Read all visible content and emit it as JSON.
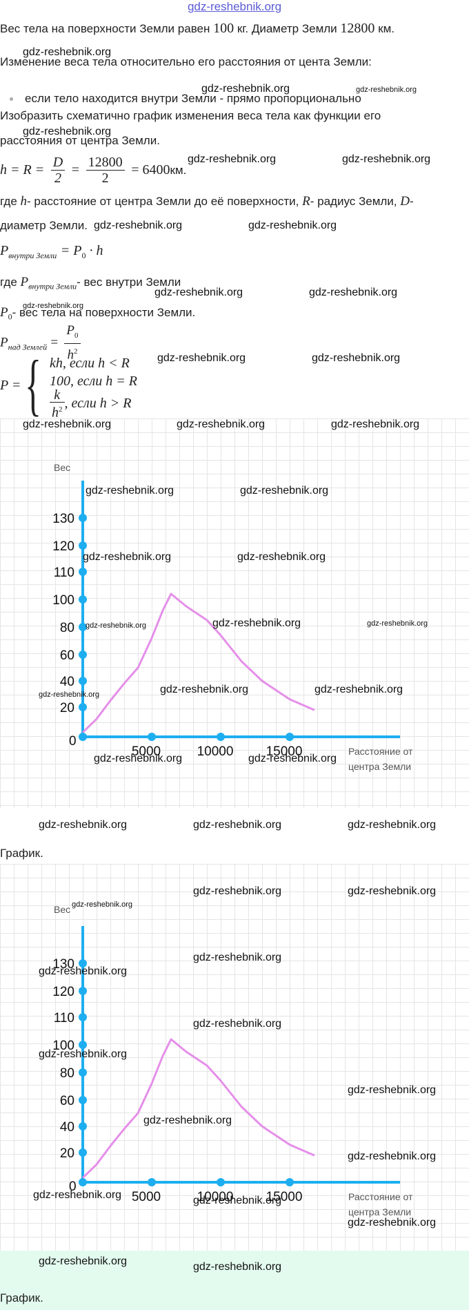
{
  "site": {
    "logo": "gdz-reshebnik.org",
    "watermark": "gdz-reshebnik.org"
  },
  "problem": {
    "line1_a": "Вес тела на поверхности Земли равен ",
    "line1_weight": "100",
    "line1_b": " кг. Диаметр Земли ",
    "line1_diameter": "12800",
    "line1_c": " км.",
    "line2": "Изменение веса тела относительно его расстояния от цента Земли:",
    "bullet": "если тело находится внутри Земли - прямо пропорционально",
    "task_line1": "Изобразить схематично график изменения веса тела как функции его",
    "task_line2": "расстояния от центра Земли."
  },
  "solution": {
    "eq1_lhs": "h = R =",
    "eq1_num1": "D",
    "eq1_den1": "2",
    "eq1_eq": "=",
    "eq1_num2": "12800",
    "eq1_den2": "2",
    "eq1_result": "= 6400",
    "eq1_unit": "км.",
    "where1_a": "где ",
    "where1_h": "h",
    "where1_b": "- расстояние от центра Земли до её поверхности, ",
    "where1_R": "R",
    "where1_c": "- радиус Земли, ",
    "where1_D": "D",
    "where1_d": "-",
    "where1_line2": "диаметр Земли.",
    "p_inside_lhs": "P",
    "p_inside_sub": "внутри Земли",
    "p_inside_rhs": "= P",
    "p_inside_sub0": "0",
    "p_inside_tail": " · h",
    "where2_a": "где ",
    "where2_P": "P",
    "where2_sub": "внутри Земли",
    "where2_b": "- вес внутри Земли",
    "p0_P": "P",
    "p0_sub": "0",
    "p0_text": "- вес тела на поверхности Земли.",
    "p_above_lhs": "P",
    "p_above_sub": "над Землей",
    "p_above_eq": "=",
    "p_above_num": "P",
    "p_above_num_sub": "0",
    "p_above_den": "h",
    "p_above_den_sup": "2",
    "piece_P": "P =",
    "piece1": "kh,  если h  <  R",
    "piece2": "100,  если h = R",
    "piece3_num": "k",
    "piece3_den": "h",
    "piece3_sup": "2",
    "piece3_cond": ",  если h  >  R"
  },
  "chart_data": {
    "type": "line",
    "ylabel": "Вес",
    "xlabel": "Расстояние от центра Земли",
    "x_ticks": [
      "5000",
      "10000",
      "15000"
    ],
    "y_ticks": [
      "20",
      "40",
      "60",
      "80",
      "100",
      "110",
      "120",
      "130"
    ],
    "origin_label": "0",
    "series": [
      {
        "x": [
          0,
          1000,
          2000,
          3000,
          4000,
          5000,
          5800,
          6400,
          7500,
          9000,
          10000,
          11500,
          13000,
          15000,
          16800
        ],
        "y": [
          3,
          12,
          25,
          38,
          50,
          72,
          92,
          102,
          95,
          85,
          74,
          55,
          40,
          26,
          18
        ]
      }
    ],
    "line_color": "#e58fe9",
    "axis_color": "#1eaef0"
  },
  "captions": {
    "graph1": "График.",
    "graph2": "График."
  }
}
